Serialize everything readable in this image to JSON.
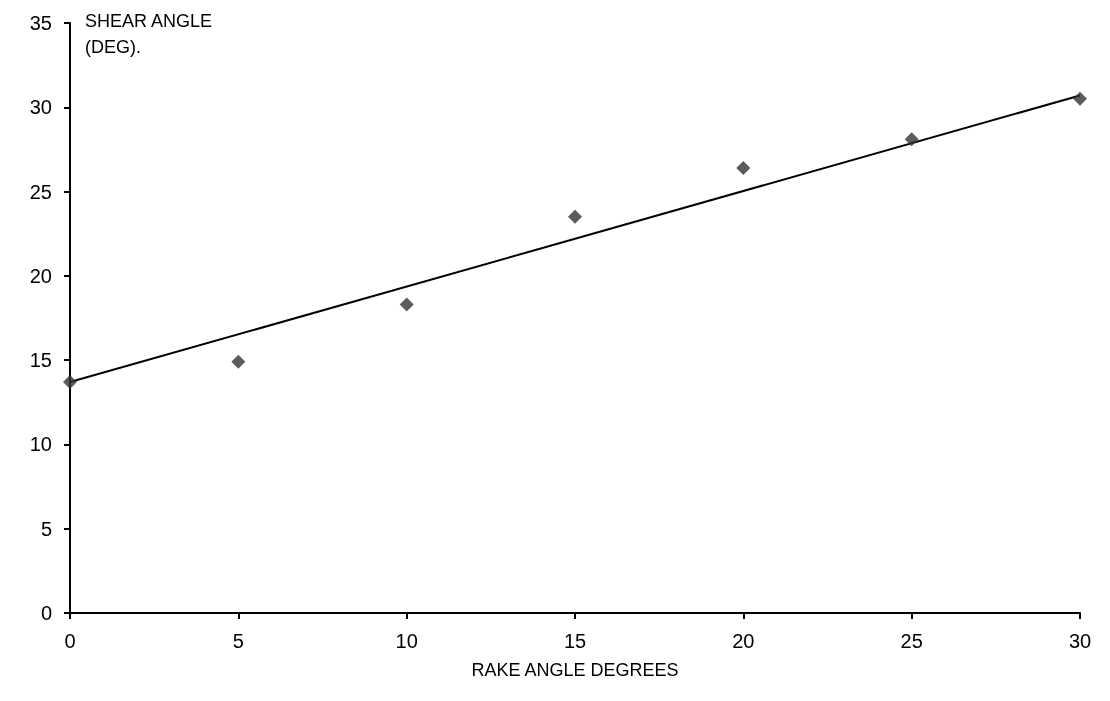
{
  "chart_data": {
    "type": "scatter",
    "xlabel": "RAKE ANGLE DEGREES",
    "ylabel": "SHEAR ANGLE\n(DEG).",
    "marker": "diamond",
    "grid": false,
    "xlim": [
      0,
      30
    ],
    "xticks": [
      0,
      5,
      10,
      15,
      20,
      25,
      30
    ],
    "ylim": [
      0,
      35
    ],
    "yticks": [
      0,
      5,
      10,
      15,
      20,
      25,
      30,
      35
    ],
    "series": [
      {
        "color": "#333333",
        "x": [
          0,
          5,
          10,
          15,
          20,
          25,
          30
        ],
        "values": [
          13.7,
          14.9,
          18.3,
          23.5,
          26.4,
          28.1,
          30.5
        ]
      },
      {
        "type": "line",
        "color": "#000000",
        "marker": "none",
        "x": [
          0,
          30
        ],
        "values": [
          13.7,
          30.7
        ]
      }
    ]
  }
}
